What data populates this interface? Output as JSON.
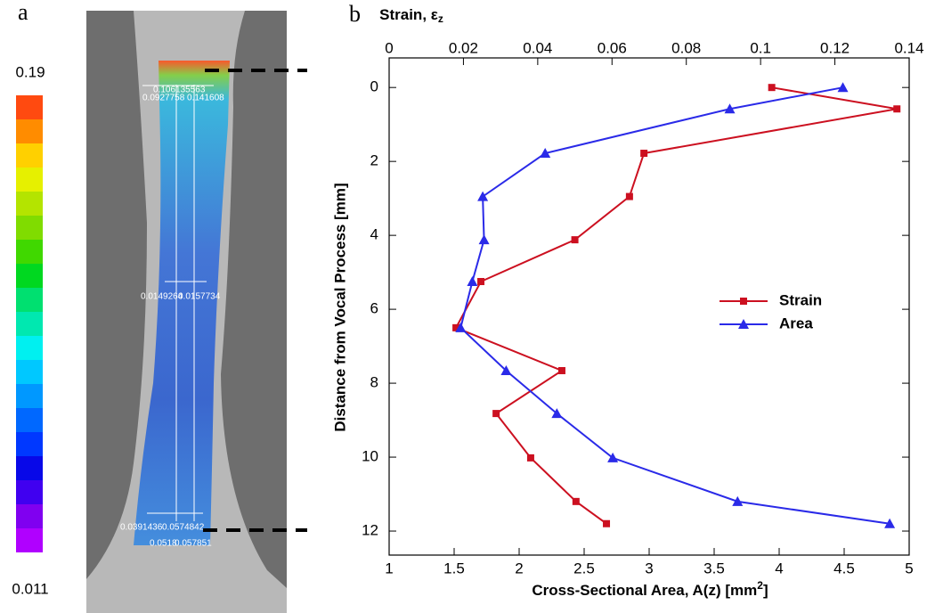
{
  "panel_a": {
    "label": "a",
    "colorbar_max": 0.19,
    "colorbar_min": 0.011,
    "annotations": [
      "0.106135563",
      "0.0927758",
      "0.141608",
      "0.0149264",
      "0.0157734",
      "0.0391436",
      "0.0574842",
      "0.0518",
      "0.057851"
    ]
  },
  "chart_data": {
    "type": "line",
    "label": "b",
    "x2label": [
      "Strain, ε",
      "z"
    ],
    "xlabel": [
      "Cross-Sectional Area, A(z) [mm",
      "2",
      "]"
    ],
    "ylabel": "Distance from Vocal Process [mm]",
    "y": [
      0,
      0.58,
      1.78,
      2.95,
      4.12,
      5.25,
      6.5,
      7.66,
      8.82,
      10.02,
      11.2,
      11.8
    ],
    "ylim": [
      -0.8,
      12.65
    ],
    "y_reversed": true,
    "yticks": [
      0,
      2,
      4,
      6,
      8,
      10,
      12
    ],
    "xlim": [
      1,
      5
    ],
    "xticks": [
      1,
      1.5,
      2,
      2.5,
      3,
      3.5,
      4,
      4.5,
      5
    ],
    "x2lim": [
      0,
      0.14
    ],
    "x2ticks": [
      0,
      0.02,
      0.04,
      0.06,
      0.08,
      0.1,
      0.12,
      0.14
    ],
    "legend": "right",
    "series": [
      {
        "name": "Strain",
        "color": "#cc1020",
        "marker": "square",
        "axis": "x2",
        "values": [
          0.103,
          0.1367,
          0.0686,
          0.0647,
          0.05,
          0.0247,
          0.018,
          0.0465,
          0.0288,
          0.0381,
          0.0503,
          0.0585
        ]
      },
      {
        "name": "Area",
        "color": "#2a2ae8",
        "marker": "triangle",
        "axis": "x",
        "values": [
          4.49,
          3.62,
          2.2,
          1.72,
          1.73,
          1.64,
          1.55,
          1.9,
          2.29,
          2.72,
          3.68,
          4.85
        ]
      }
    ]
  }
}
